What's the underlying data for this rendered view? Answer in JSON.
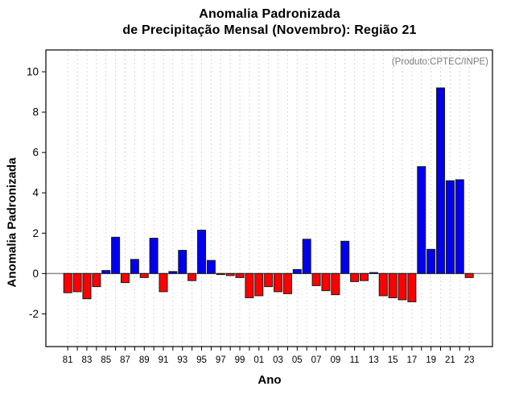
{
  "figure": {
    "title_line1": "Anomalia Padronizada",
    "title_line2": "de Precipitação Mensal (Novembro): Região 21",
    "annotation": "(Produto:CPTEC/INPE)",
    "xlabel": "Ano",
    "ylabel": "Anomalia Padronizada"
  },
  "chart_data": {
    "type": "bar",
    "title": "Anomalia Padronizada de Precipitação Mensal (Novembro): Região 21",
    "subtitle": "(Produto:CPTEC/INPE)",
    "xlabel": "Ano",
    "ylabel": "Anomalia Padronizada",
    "years": [
      1981,
      1982,
      1983,
      1984,
      1985,
      1986,
      1987,
      1988,
      1989,
      1990,
      1991,
      1992,
      1993,
      1994,
      1995,
      1996,
      1997,
      1998,
      1999,
      2000,
      2001,
      2002,
      2003,
      2004,
      2005,
      2006,
      2007,
      2008,
      2009,
      2010,
      2011,
      2012,
      2013,
      2014,
      2015,
      2016,
      2017,
      2018,
      2019,
      2020,
      2021,
      2022,
      2023
    ],
    "values": [
      -0.95,
      -0.9,
      -1.25,
      -0.65,
      0.15,
      1.8,
      -0.45,
      0.7,
      -0.2,
      1.75,
      -0.9,
      0.1,
      1.15,
      -0.35,
      2.15,
      0.65,
      -0.05,
      -0.1,
      -0.2,
      -1.2,
      -1.1,
      -0.65,
      -0.9,
      -1.0,
      0.2,
      1.7,
      -0.6,
      -0.85,
      -1.05,
      1.6,
      -0.4,
      -0.35,
      0.05,
      -1.1,
      -1.2,
      -1.3,
      -1.4,
      5.3,
      1.2,
      9.2,
      4.6,
      4.65,
      -0.2
    ],
    "x_tick_labels": [
      "81",
      "83",
      "85",
      "87",
      "89",
      "91",
      "93",
      "95",
      "97",
      "99",
      "01",
      "03",
      "05",
      "07",
      "09",
      "11",
      "13",
      "15",
      "17",
      "19",
      "21",
      "23"
    ],
    "x_label_rule": "odd-years-two-digit",
    "yticks": [
      -2,
      0,
      2,
      4,
      6,
      8,
      10
    ],
    "ylim": [
      -3.62,
      11.08
    ],
    "grid": "vertical-dashed",
    "legend": "none",
    "positive_color": "#0000ee",
    "negative_color": "#ff0000",
    "bar_border_color": "#1a1a1a",
    "zero_line_color": "#8c8c8c",
    "grid_color": "#d9d9d9",
    "axis_color": "#000000"
  }
}
